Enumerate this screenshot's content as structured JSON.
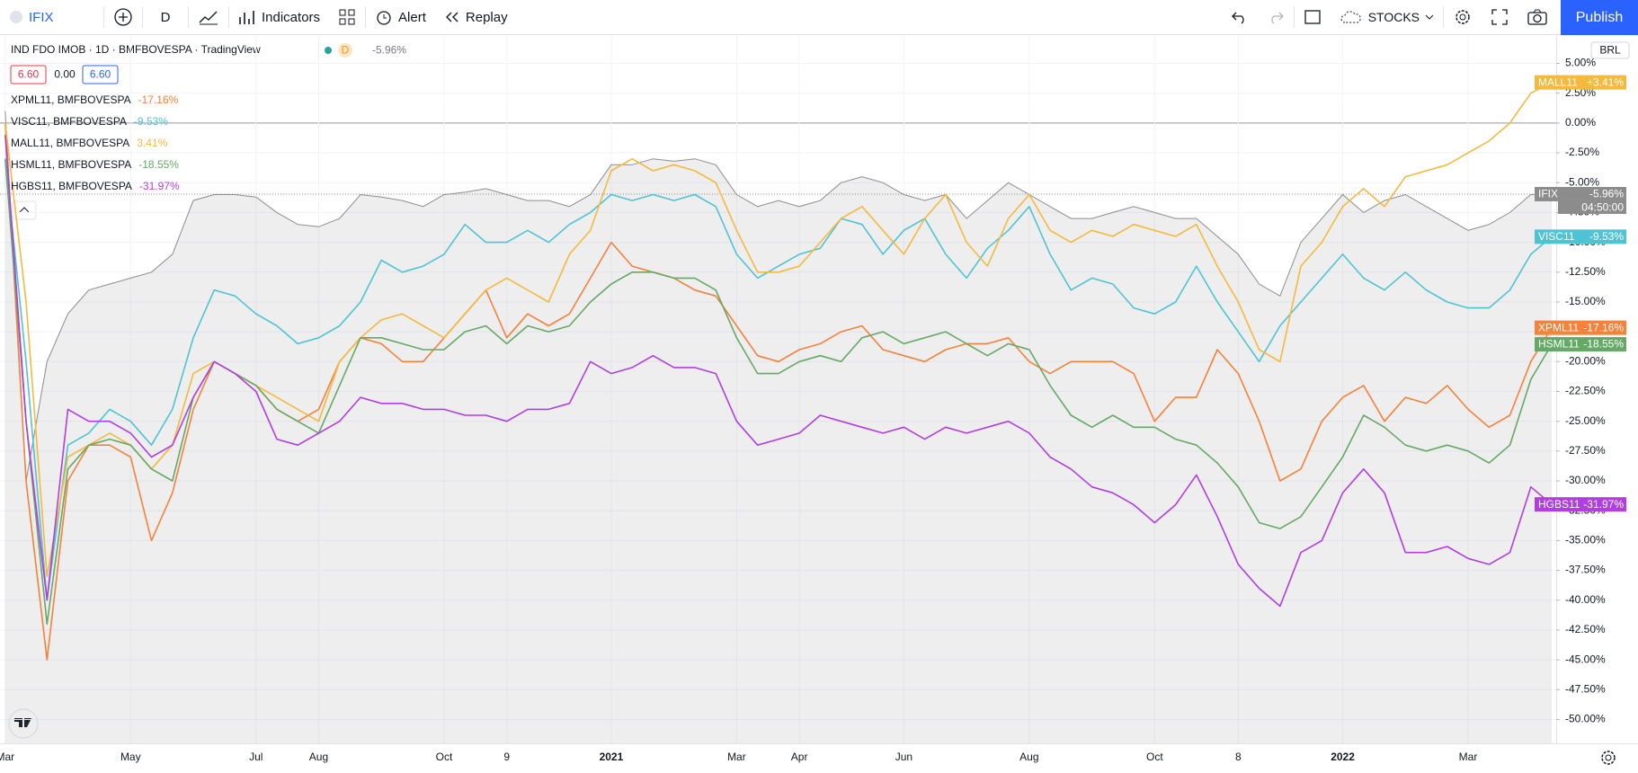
{
  "toolbar": {
    "symbol": "IFIX",
    "interval": "D",
    "indicators": "Indicators",
    "alert": "Alert",
    "replay": "Replay",
    "layout": "STOCKS",
    "publish": "Publish"
  },
  "header": {
    "title": "IND FDO IMOB · 1D · BMFBOVESPA · TradingView",
    "badge": "D",
    "change": "-5.96%",
    "prices": [
      "6.60",
      "0.00",
      "6.60"
    ],
    "currency": "BRL"
  },
  "chart_data": {
    "type": "line",
    "categories": [
      "Mar",
      null,
      null,
      null,
      null,
      null,
      "May",
      null,
      null,
      null,
      null,
      null,
      "Jul",
      null,
      null,
      "Aug",
      null,
      null,
      null,
      null,
      null,
      "Oct",
      null,
      null,
      "9",
      null,
      null,
      null,
      null,
      "2021",
      null,
      null,
      null,
      null,
      null,
      "Mar",
      null,
      null,
      "Apr",
      null,
      null,
      null,
      null,
      "Jun",
      null,
      null,
      null,
      null,
      null,
      "Aug",
      null,
      null,
      null,
      null,
      null,
      "Oct",
      null,
      null,
      null,
      "8",
      null,
      null,
      null,
      null,
      "2022",
      null,
      null,
      null,
      null,
      null,
      "Mar",
      null,
      null,
      null,
      null
    ],
    "ylim": [
      -52,
      7.3
    ],
    "yticks": [
      {
        "value": 5,
        "label": "5.00%"
      },
      {
        "value": 2.5,
        "label": "2.50%"
      },
      {
        "value": 0,
        "label": "0.00%"
      },
      {
        "value": -2.5,
        "label": "-2.50%"
      },
      {
        "value": -5,
        "label": "-5.00%"
      },
      {
        "value": -7.5,
        "label": "-7.50%"
      },
      {
        "value": -10,
        "label": "-10.00%"
      },
      {
        "value": -12.5,
        "label": "-12.50%"
      },
      {
        "value": -15,
        "label": "-15.00%"
      },
      {
        "value": -17.5,
        "label": "-17.50%"
      },
      {
        "value": -20,
        "label": "-20.00%"
      },
      {
        "value": -22.5,
        "label": "-22.50%"
      },
      {
        "value": -25,
        "label": "-25.00%"
      },
      {
        "value": -27.5,
        "label": "-27.50%"
      },
      {
        "value": -30,
        "label": "-30.00%"
      },
      {
        "value": -32.5,
        "label": "-32.50%"
      },
      {
        "value": -35,
        "label": "-35.00%"
      },
      {
        "value": -37.5,
        "label": "-37.50%"
      },
      {
        "value": -40,
        "label": "-40.00%"
      },
      {
        "value": -42.5,
        "label": "-42.50%"
      },
      {
        "value": -45,
        "label": "-45.00%"
      },
      {
        "value": -47.5,
        "label": "-47.50%"
      },
      {
        "value": -50,
        "label": "-50.00%"
      }
    ],
    "grid": true,
    "benchmark": {
      "name": "IFIX",
      "color": "#8c8c8c",
      "tag_label": "-5.96%",
      "countdown": "04:50:00",
      "values": [
        1,
        -30,
        -20,
        -16,
        -14,
        -13.5,
        -13,
        -12.5,
        -11,
        -6.5,
        -6,
        -6,
        -6.2,
        -7.5,
        -8.5,
        -8.7,
        -8,
        -6,
        -6.2,
        -6.5,
        -7,
        -6,
        -5.8,
        -5.5,
        -6,
        -6.5,
        -6.5,
        -7,
        -6,
        -3.5,
        -3.5,
        -3,
        -3.2,
        -3,
        -3.5,
        -6,
        -7,
        -6.5,
        -7,
        -6.5,
        -5,
        -4.5,
        -5,
        -6,
        -6.5,
        -6,
        -8,
        -6.5,
        -5,
        -6,
        -7,
        -8,
        -8,
        -7.5,
        -7,
        -7.5,
        -8,
        -8,
        -9.5,
        -11,
        -13.5,
        -14.5,
        -10,
        -8,
        -6,
        -7.5,
        -6.5,
        -6,
        -7,
        -8,
        -9,
        -8.5,
        -7.5,
        -6,
        -5.96
      ]
    },
    "series": [
      {
        "name": "XPML11",
        "legend_label": "XPML11, BMFBOVESPA",
        "change_label": "-17.16%",
        "tag_label": "-17.16%",
        "color": "#f5813a",
        "values": [
          0,
          -30,
          -45,
          -30,
          -27,
          -27,
          -28,
          -35,
          -31,
          -24,
          -20,
          -21,
          -22,
          -24,
          -25,
          -24,
          -20,
          -18,
          -18.5,
          -20,
          -20,
          -18,
          -16,
          -14,
          -18,
          -16,
          -17,
          -16,
          -13,
          -10,
          -12,
          -12.5,
          -13,
          -14,
          -14.5,
          -17,
          -19.5,
          -20,
          -19,
          -18.5,
          -17.5,
          -17,
          -19,
          -19.5,
          -20,
          -19,
          -18.5,
          -18.5,
          -18,
          -20,
          -21,
          -20,
          -20,
          -20,
          -21,
          -25,
          -23,
          -23,
          -19,
          -21,
          -25,
          -30,
          -29,
          -25,
          -23,
          -22,
          -25,
          -23,
          -23.5,
          -22,
          -24,
          -25.5,
          -24.5,
          -20,
          -17.16
        ]
      },
      {
        "name": "VISC11",
        "legend_label": "VISC11, BMFBOVESPA",
        "change_label": "-9.53%",
        "tag_label": "-9.53%",
        "color": "#4fc3d3",
        "values": [
          -3,
          -20,
          -40,
          -27,
          -26,
          -24,
          -25,
          -27,
          -24,
          -18,
          -14,
          -14.5,
          -16,
          -17,
          -18.5,
          -18,
          -17,
          -15,
          -11.5,
          -12.5,
          -12,
          -11,
          -8.5,
          -10,
          -10,
          -9,
          -10,
          -8.5,
          -7.5,
          -6,
          -6.5,
          -6,
          -6.5,
          -6,
          -7,
          -11,
          -13,
          -12,
          -11,
          -10.5,
          -8,
          -8.5,
          -11,
          -9,
          -8,
          -11,
          -13,
          -10.5,
          -9,
          -7,
          -11,
          -14,
          -13,
          -13.5,
          -15.5,
          -16,
          -15,
          -12,
          -15,
          -17.5,
          -20,
          -17,
          -15,
          -13,
          -11,
          -13,
          -14,
          -12.5,
          -14,
          -15,
          -15.5,
          -15.5,
          -14,
          -11,
          -9.53
        ]
      },
      {
        "name": "MALL11",
        "legend_label": "MALL11, BMFBOVESPA",
        "change_label": "3.41%",
        "tag_label": "+3.41%",
        "color": "#f4b93e",
        "values": [
          0,
          -15,
          -38,
          -28,
          -27,
          -26,
          -27,
          -29,
          -27,
          -21,
          -20,
          -21,
          -22,
          -23,
          -24,
          -25,
          -20,
          -18,
          -16.5,
          -16,
          -17,
          -18,
          -16,
          -14,
          -13,
          -14,
          -15,
          -11,
          -9,
          -4,
          -3,
          -4,
          -3.5,
          -4,
          -5,
          -9,
          -12.5,
          -12.5,
          -12,
          -10,
          -8,
          -7,
          -9,
          -11,
          -8,
          -6,
          -10,
          -12,
          -8,
          -6,
          -9,
          -10,
          -9,
          -9.5,
          -8.5,
          -9,
          -9.5,
          -8.5,
          -12,
          -15,
          -19,
          -20,
          -12,
          -10,
          -7,
          -5.5,
          -7,
          -4.5,
          -4,
          -3.5,
          -2.5,
          -1.5,
          0,
          2.5,
          3.41
        ]
      },
      {
        "name": "HSML11",
        "legend_label": "HSML11, BMFBOVESPA",
        "change_label": "-18.55%",
        "tag_label": "-18.55%",
        "color": "#66a866",
        "values": [
          -3,
          -25,
          -42,
          -29,
          -27,
          -26.5,
          -27,
          -29,
          -30,
          -23,
          -20,
          -21,
          -22,
          -24,
          -25,
          -26,
          -22,
          -18,
          -18,
          -18.5,
          -19,
          -19,
          -17.5,
          -17,
          -18.5,
          -17,
          -17.5,
          -17,
          -15,
          -13.5,
          -12.5,
          -12.5,
          -13,
          -13,
          -14,
          -18,
          -21,
          -21,
          -20,
          -19.5,
          -20,
          -18,
          -17.5,
          -18.5,
          -18,
          -17.5,
          -18.5,
          -19.5,
          -18.5,
          -19,
          -22,
          -24.5,
          -25.5,
          -24.5,
          -25.5,
          -25.5,
          -26.5,
          -27,
          -28.5,
          -30.5,
          -33.5,
          -34,
          -33,
          -30.5,
          -28,
          -24.5,
          -25.5,
          -27,
          -27.5,
          -27,
          -27.5,
          -28.5,
          -27,
          -21.5,
          -18.55
        ]
      },
      {
        "name": "HGBS11",
        "legend_label": "HGBS11, BMFBOVESPA",
        "change_label": "-31.97%",
        "tag_label": "-31.97%",
        "color": "#b03ee0",
        "values": [
          -1,
          -25,
          -40,
          -24,
          -25,
          -25,
          -26,
          -28,
          -27,
          -23,
          -20,
          -21,
          -22.5,
          -26.5,
          -27,
          -26,
          -25,
          -23,
          -23.5,
          -23.5,
          -24,
          -24,
          -24.5,
          -24.5,
          -25,
          -24,
          -24,
          -23.5,
          -20,
          -21,
          -20.5,
          -19.5,
          -20.5,
          -20.5,
          -21,
          -25,
          -27,
          -26.5,
          -26,
          -24.5,
          -25,
          -25.5,
          -26,
          -25.5,
          -26.5,
          -25.5,
          -26,
          -25.5,
          -25,
          -26,
          -28,
          -29,
          -30.5,
          -31,
          -32,
          -33.5,
          -32,
          -29.5,
          -33,
          -37,
          -39,
          -40.5,
          -36,
          -35,
          -31,
          -29,
          -31,
          -36,
          -36,
          -35.5,
          -36.5,
          -37,
          -36,
          -30.5,
          -31.97
        ]
      }
    ]
  }
}
